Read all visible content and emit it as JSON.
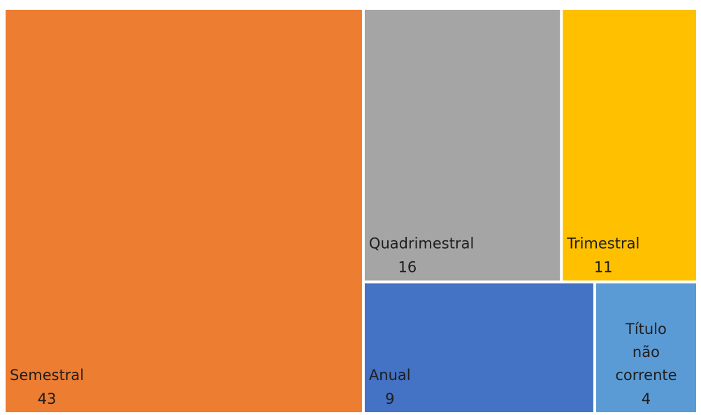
{
  "chart_data": {
    "type": "treemap",
    "categories": [
      "Semestral",
      "Quadrimestral",
      "Trimestral",
      "Anual",
      "Título não corrente"
    ],
    "values": [
      43,
      16,
      11,
      9,
      4
    ],
    "colors": [
      "#ED7D31",
      "#A5A5A5",
      "#FFC000",
      "#4472C4",
      "#5B9BD5"
    ]
  }
}
